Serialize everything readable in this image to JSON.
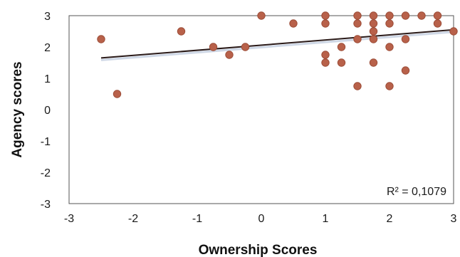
{
  "chart_data": {
    "type": "scatter",
    "title": "",
    "xlabel": "Ownership Scores",
    "ylabel": "Agency scores",
    "xlim": [
      -3,
      3
    ],
    "ylim": [
      -3,
      3
    ],
    "xticks": [
      "-3",
      "-2",
      "-1",
      "0",
      "1",
      "2",
      "3"
    ],
    "yticks": [
      "3",
      "2",
      "1",
      "0",
      "-1",
      "-2",
      "-3"
    ],
    "grid": false,
    "legend": "none",
    "annotation": "R² = 0,1079",
    "trendline": {
      "x": [
        -2.5,
        3
      ],
      "y": [
        1.65,
        2.55
      ]
    },
    "colors": {
      "point": "#b8614a",
      "point_stroke": "#9c4d38",
      "trendline": "#2a1a18"
    },
    "points": [
      {
        "x": -2.5,
        "y": 2.25
      },
      {
        "x": -2.25,
        "y": 0.5
      },
      {
        "x": -1.25,
        "y": 2.5
      },
      {
        "x": -0.75,
        "y": 2.0
      },
      {
        "x": -0.5,
        "y": 1.75
      },
      {
        "x": -0.25,
        "y": 2.0
      },
      {
        "x": 0.0,
        "y": 3.0
      },
      {
        "x": 0.5,
        "y": 2.75
      },
      {
        "x": 1.0,
        "y": 3.0
      },
      {
        "x": 1.0,
        "y": 2.75
      },
      {
        "x": 1.0,
        "y": 1.75
      },
      {
        "x": 1.0,
        "y": 1.5
      },
      {
        "x": 1.25,
        "y": 2.0
      },
      {
        "x": 1.25,
        "y": 1.5
      },
      {
        "x": 1.5,
        "y": 3.0
      },
      {
        "x": 1.5,
        "y": 2.75
      },
      {
        "x": 1.5,
        "y": 2.25
      },
      {
        "x": 1.5,
        "y": 0.75
      },
      {
        "x": 1.75,
        "y": 3.0
      },
      {
        "x": 1.75,
        "y": 2.75
      },
      {
        "x": 1.75,
        "y": 2.5
      },
      {
        "x": 1.75,
        "y": 2.25
      },
      {
        "x": 1.75,
        "y": 1.5
      },
      {
        "x": 2.0,
        "y": 3.0
      },
      {
        "x": 2.0,
        "y": 2.75
      },
      {
        "x": 2.0,
        "y": 2.0
      },
      {
        "x": 2.0,
        "y": 0.75
      },
      {
        "x": 2.25,
        "y": 3.0
      },
      {
        "x": 2.25,
        "y": 2.25
      },
      {
        "x": 2.25,
        "y": 1.25
      },
      {
        "x": 2.5,
        "y": 3.0
      },
      {
        "x": 2.75,
        "y": 3.0
      },
      {
        "x": 2.75,
        "y": 2.75
      },
      {
        "x": 3.0,
        "y": 2.5
      }
    ]
  }
}
